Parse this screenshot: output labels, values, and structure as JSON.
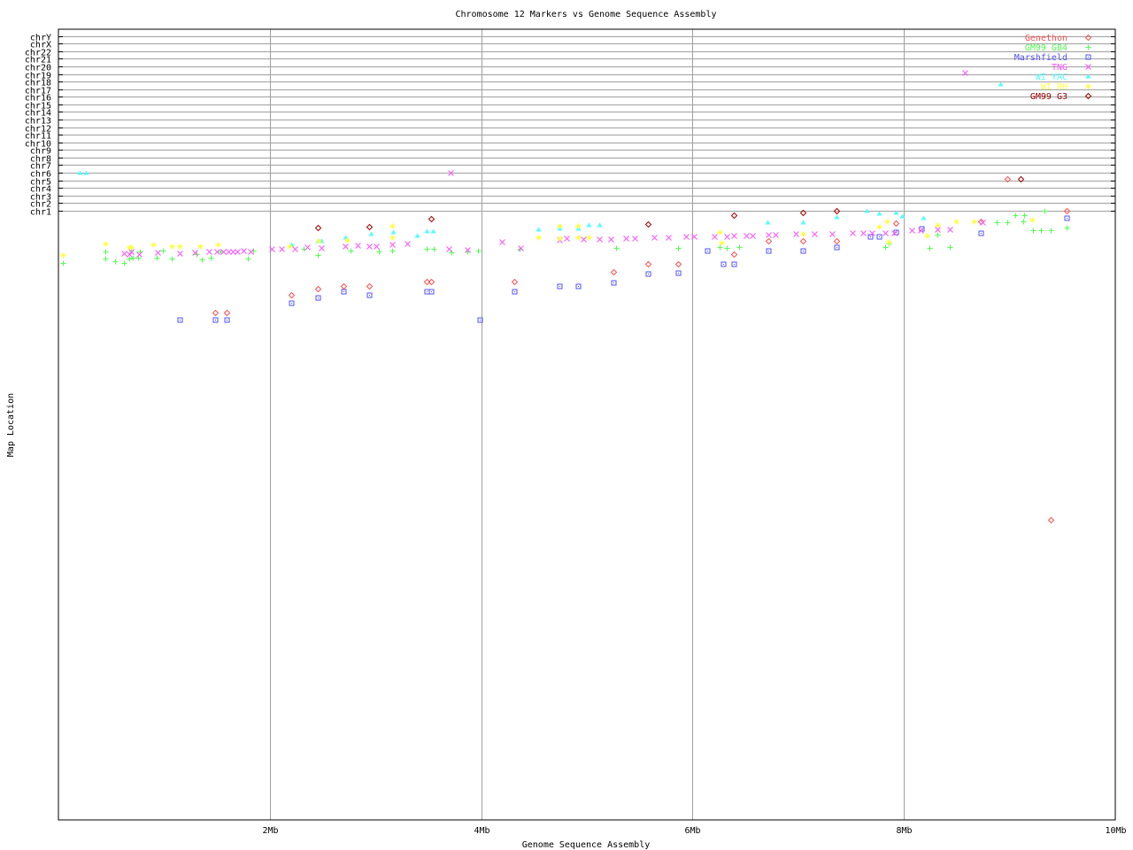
{
  "chart_data": {
    "type": "scatter",
    "title": "Chromosome 12 Markers vs Genome Sequence Assembly",
    "xlabel": "Genome Sequence Assembly",
    "ylabel": "Map Location",
    "xlim": [
      0,
      10
    ],
    "ylim": [
      -79.3,
      24.9
    ],
    "grid": true,
    "legend_position": "top-right",
    "x_ticks": [
      {
        "value": 2,
        "label": "2Mb"
      },
      {
        "value": 4,
        "label": "4Mb"
      },
      {
        "value": 6,
        "label": "6Mb"
      },
      {
        "value": 8,
        "label": "8Mb"
      },
      {
        "value": 10,
        "label": "10Mb"
      }
    ],
    "y_ticks": [
      {
        "value": 1,
        "label": "chr1"
      },
      {
        "value": 2,
        "label": "chr2"
      },
      {
        "value": 3,
        "label": "chr3"
      },
      {
        "value": 4,
        "label": "chr4"
      },
      {
        "value": 5,
        "label": "chr5"
      },
      {
        "value": 6,
        "label": "chr6"
      },
      {
        "value": 7,
        "label": "chr7"
      },
      {
        "value": 8,
        "label": "chr8"
      },
      {
        "value": 9,
        "label": "chr9"
      },
      {
        "value": 10,
        "label": "chr10"
      },
      {
        "value": 11,
        "label": "chr11"
      },
      {
        "value": 12,
        "label": "chr12"
      },
      {
        "value": 13,
        "label": "chr13"
      },
      {
        "value": 14,
        "label": "chr14"
      },
      {
        "value": 15,
        "label": "chr15"
      },
      {
        "value": 16,
        "label": "chr16"
      },
      {
        "value": 17,
        "label": "chr17"
      },
      {
        "value": 18,
        "label": "chr18"
      },
      {
        "value": 19,
        "label": "chr19"
      },
      {
        "value": 20,
        "label": "chr20"
      },
      {
        "value": 21,
        "label": "chr21"
      },
      {
        "value": 22,
        "label": "chr22"
      },
      {
        "value": 23,
        "label": "chrX"
      },
      {
        "value": 24,
        "label": "chrY"
      }
    ],
    "series": [
      {
        "name": "Genethon",
        "color": "#ff5050",
        "marker": "diamond",
        "points": [
          [
            1.48,
            -12.43
          ],
          [
            1.59,
            -12.43
          ],
          [
            2.2,
            -10.09
          ],
          [
            2.45,
            -9.27
          ],
          [
            2.7,
            -8.92
          ],
          [
            2.94,
            -8.92
          ],
          [
            3.48,
            -8.34
          ],
          [
            3.53,
            -8.34
          ],
          [
            4.31,
            -8.34
          ],
          [
            5.25,
            -7.06
          ],
          [
            5.58,
            -6.01
          ],
          [
            5.86,
            -6.01
          ],
          [
            6.39,
            -4.72
          ],
          [
            6.72,
            -2.97
          ],
          [
            7.04,
            -2.97
          ],
          [
            7.36,
            -2.97
          ],
          [
            7.92,
            -0.63
          ],
          [
            8.73,
            -0.4
          ],
          [
            9.54,
            1.0
          ],
          [
            9.39,
            -39.75
          ],
          [
            8.98,
            5.2
          ]
        ]
      },
      {
        "name": "GM99 GB4",
        "color": "#50ff50",
        "marker": "plus",
        "points": [
          [
            0.04,
            -5.89
          ],
          [
            0.44,
            -5.3
          ],
          [
            0.44,
            -4.37
          ],
          [
            0.54,
            -5.66
          ],
          [
            0.62,
            -5.89
          ],
          [
            0.67,
            -5.3
          ],
          [
            0.69,
            -4.25
          ],
          [
            0.7,
            -5.19
          ],
          [
            0.75,
            -5.19
          ],
          [
            0.77,
            -4.37
          ],
          [
            0.93,
            -5.19
          ],
          [
            0.99,
            -4.25
          ],
          [
            1.07,
            -5.3
          ],
          [
            1.31,
            -4.72
          ],
          [
            1.36,
            -5.42
          ],
          [
            1.44,
            -5.19
          ],
          [
            1.53,
            -4.37
          ],
          [
            1.79,
            -5.3
          ],
          [
            1.84,
            -4.25
          ],
          [
            2.32,
            -4.02
          ],
          [
            2.45,
            -4.84
          ],
          [
            2.76,
            -4.25
          ],
          [
            3.03,
            -4.37
          ],
          [
            3.16,
            -4.25
          ],
          [
            3.48,
            -4.02
          ],
          [
            3.55,
            -4.02
          ],
          [
            3.72,
            -4.49
          ],
          [
            3.87,
            -4.37
          ],
          [
            3.97,
            -4.25
          ],
          [
            4.36,
            -4.02
          ],
          [
            5.28,
            -3.9
          ],
          [
            5.86,
            -3.9
          ],
          [
            6.26,
            -3.79
          ],
          [
            6.32,
            -3.9
          ],
          [
            6.44,
            -3.79
          ],
          [
            7.82,
            -3.79
          ],
          [
            7.86,
            -3.32
          ],
          [
            8.24,
            -3.9
          ],
          [
            8.32,
            -2.15
          ],
          [
            8.43,
            -3.79
          ],
          [
            8.88,
            -0.52
          ],
          [
            8.98,
            -0.52
          ],
          [
            9.05,
            0.42
          ],
          [
            9.13,
            -0.4
          ],
          [
            9.14,
            0.42
          ],
          [
            9.22,
            -1.57
          ],
          [
            9.3,
            -1.57
          ],
          [
            9.33,
            1.0
          ],
          [
            9.39,
            -1.57
          ],
          [
            9.54,
            -1.22
          ]
        ]
      },
      {
        "name": "Marshfield",
        "color": "#5050ff",
        "marker": "square",
        "points": [
          [
            1.15,
            -13.36
          ],
          [
            1.48,
            -13.36
          ],
          [
            1.59,
            -13.36
          ],
          [
            2.2,
            -11.14
          ],
          [
            2.45,
            -10.44
          ],
          [
            2.7,
            -9.62
          ],
          [
            2.94,
            -10.09
          ],
          [
            3.48,
            -9.62
          ],
          [
            3.53,
            -9.62
          ],
          [
            3.99,
            -13.36
          ],
          [
            4.31,
            -9.62
          ],
          [
            4.74,
            -8.92
          ],
          [
            4.92,
            -8.92
          ],
          [
            5.25,
            -8.46
          ],
          [
            5.58,
            -7.29
          ],
          [
            5.86,
            -7.17
          ],
          [
            6.14,
            -4.25
          ],
          [
            6.29,
            -6.01
          ],
          [
            6.39,
            -6.01
          ],
          [
            6.72,
            -4.25
          ],
          [
            7.04,
            -4.25
          ],
          [
            7.36,
            -3.79
          ],
          [
            7.68,
            -2.39
          ],
          [
            7.76,
            -2.39
          ],
          [
            7.92,
            -1.8
          ],
          [
            8.17,
            -1.34
          ],
          [
            8.73,
            -1.92
          ],
          [
            9.54,
            0.07
          ]
        ]
      },
      {
        "name": "TNG",
        "color": "#ff50ff",
        "marker": "cross",
        "points": [
          [
            0.62,
            -4.6
          ],
          [
            0.67,
            -4.72
          ],
          [
            0.69,
            -4.37
          ],
          [
            0.76,
            -4.72
          ],
          [
            0.94,
            -4.49
          ],
          [
            1.15,
            -4.6
          ],
          [
            1.29,
            -4.49
          ],
          [
            1.42,
            -4.37
          ],
          [
            1.5,
            -4.37
          ],
          [
            1.56,
            -4.37
          ],
          [
            1.61,
            -4.37
          ],
          [
            1.65,
            -4.37
          ],
          [
            1.69,
            -4.37
          ],
          [
            1.75,
            -4.25
          ],
          [
            1.82,
            -4.37
          ],
          [
            2.02,
            -4.02
          ],
          [
            2.11,
            -4.02
          ],
          [
            2.24,
            -4.02
          ],
          [
            2.35,
            -3.79
          ],
          [
            2.49,
            -3.9
          ],
          [
            2.71,
            -3.67
          ],
          [
            2.83,
            -3.55
          ],
          [
            2.94,
            -3.67
          ],
          [
            3.01,
            -3.67
          ],
          [
            3.16,
            -3.44
          ],
          [
            3.3,
            -3.32
          ],
          [
            3.69,
            -4.02
          ],
          [
            3.71,
            6.02
          ],
          [
            3.87,
            -4.14
          ],
          [
            4.2,
            -3.09
          ],
          [
            4.37,
            -3.9
          ],
          [
            4.74,
            -2.85
          ],
          [
            4.81,
            -2.62
          ],
          [
            4.97,
            -2.74
          ],
          [
            5.12,
            -2.74
          ],
          [
            5.23,
            -2.74
          ],
          [
            5.37,
            -2.62
          ],
          [
            5.45,
            -2.62
          ],
          [
            5.64,
            -2.5
          ],
          [
            5.77,
            -2.5
          ],
          [
            5.94,
            -2.39
          ],
          [
            6.01,
            -2.39
          ],
          [
            6.21,
            -2.39
          ],
          [
            6.32,
            -2.39
          ],
          [
            6.39,
            -2.27
          ],
          [
            6.51,
            -2.27
          ],
          [
            6.57,
            -2.27
          ],
          [
            6.72,
            -2.15
          ],
          [
            6.78,
            -2.15
          ],
          [
            6.98,
            -2.04
          ],
          [
            7.15,
            -2.04
          ],
          [
            7.32,
            -2.04
          ],
          [
            7.51,
            -1.92
          ],
          [
            7.61,
            -1.92
          ],
          [
            7.7,
            -1.92
          ],
          [
            7.82,
            -1.92
          ],
          [
            7.91,
            -1.92
          ],
          [
            8.07,
            -1.57
          ],
          [
            8.16,
            -1.57
          ],
          [
            8.32,
            -1.45
          ],
          [
            8.43,
            -1.45
          ],
          [
            8.74,
            -0.52
          ],
          [
            8.58,
            19.21
          ]
        ]
      },
      {
        "name": "WI YAC",
        "color": "#50ffff",
        "marker": "triangle",
        "points": [
          [
            0.2,
            6.02
          ],
          [
            0.26,
            6.02
          ],
          [
            2.2,
            -3.44
          ],
          [
            2.45,
            -2.97
          ],
          [
            2.49,
            -2.97
          ],
          [
            2.71,
            -2.5
          ],
          [
            2.96,
            -2.04
          ],
          [
            3.17,
            -1.8
          ],
          [
            3.39,
            -2.27
          ],
          [
            3.48,
            -1.69
          ],
          [
            3.54,
            -1.69
          ],
          [
            4.54,
            -1.45
          ],
          [
            4.74,
            -1.34
          ],
          [
            4.92,
            -1.34
          ],
          [
            5.02,
            -0.87
          ],
          [
            5.12,
            -0.87
          ],
          [
            6.71,
            -0.52
          ],
          [
            7.04,
            -0.52
          ],
          [
            7.36,
            0.18
          ],
          [
            7.65,
            1.0
          ],
          [
            7.76,
            0.65
          ],
          [
            7.92,
            0.77
          ],
          [
            7.98,
            0.3
          ],
          [
            8.18,
            0.07
          ],
          [
            8.91,
            17.7
          ]
        ]
      },
      {
        "name": "WI RH",
        "color": "#ffff40",
        "marker": "star",
        "points": [
          [
            0.04,
            -4.84
          ],
          [
            0.44,
            -3.32
          ],
          [
            0.67,
            -3.79
          ],
          [
            0.69,
            -3.79
          ],
          [
            0.9,
            -3.44
          ],
          [
            1.07,
            -3.67
          ],
          [
            1.15,
            -3.67
          ],
          [
            1.34,
            -3.67
          ],
          [
            1.51,
            -3.44
          ],
          [
            2.19,
            -3.67
          ],
          [
            2.46,
            -2.97
          ],
          [
            2.73,
            -2.85
          ],
          [
            3.16,
            -0.98
          ],
          [
            3.16,
            -2.5
          ],
          [
            4.54,
            -2.5
          ],
          [
            4.74,
            -0.98
          ],
          [
            4.74,
            -2.62
          ],
          [
            4.92,
            -0.98
          ],
          [
            4.92,
            -2.5
          ],
          [
            5.02,
            -2.5
          ],
          [
            6.26,
            -1.8
          ],
          [
            6.27,
            -3.2
          ],
          [
            7.04,
            -2.04
          ],
          [
            7.76,
            -1.1
          ],
          [
            7.84,
            -0.4
          ],
          [
            7.86,
            -3.09
          ],
          [
            8.22,
            -2.27
          ],
          [
            8.32,
            -0.87
          ],
          [
            8.49,
            -0.4
          ],
          [
            8.66,
            -0.4
          ],
          [
            9.21,
            -0.17
          ]
        ]
      },
      {
        "name": "GM99 G3",
        "color": "#a00000",
        "marker": "diamond",
        "points": [
          [
            2.45,
            -1.22
          ],
          [
            2.94,
            -1.1
          ],
          [
            3.53,
            -0.05
          ],
          [
            5.58,
            -0.75
          ],
          [
            6.39,
            0.42
          ],
          [
            7.04,
            0.77
          ],
          [
            7.36,
            1.0
          ],
          [
            9.1,
            5.2
          ]
        ]
      }
    ]
  }
}
